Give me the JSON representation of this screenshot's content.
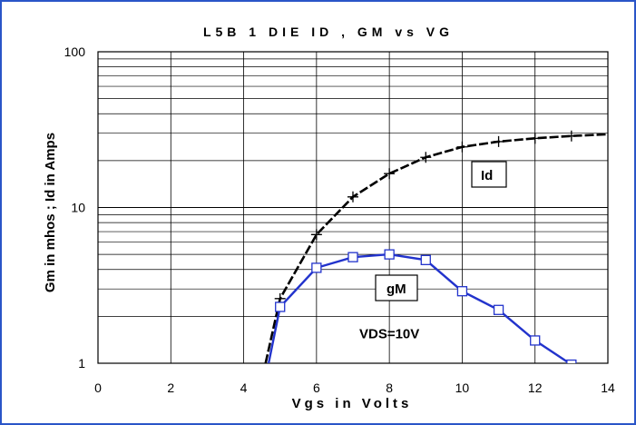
{
  "chart_data": {
    "type": "line",
    "title": "L5B 1 DIE   ID , GM vs VG",
    "xlabel": "Vgs in Volts",
    "ylabel": "Gm in  mhos ; Id in Amps",
    "xlim": [
      0,
      14
    ],
    "ylim": [
      1,
      100
    ],
    "y_scale": "log",
    "x_ticks": [
      "0",
      "2",
      "4",
      "6",
      "8",
      "10",
      "12",
      "14"
    ],
    "y_ticks": [
      "1",
      "10",
      "100"
    ],
    "grid": true,
    "series": [
      {
        "name": "Id",
        "color": "#000000",
        "marker": "plus",
        "line_style": "dashed",
        "x": [
          4.6,
          5.0,
          6.0,
          7.0,
          8.0,
          9.0,
          10.0,
          11.0,
          12.0,
          13.0,
          14.0
        ],
        "y": [
          1.0,
          2.6,
          6.7,
          11.7,
          16.5,
          21.0,
          24.5,
          26.5,
          27.8,
          28.8,
          29.5
        ]
      },
      {
        "name": "gM",
        "color": "#2233cc",
        "marker": "square",
        "line_style": "solid",
        "x": [
          4.6,
          5.0,
          6.0,
          7.0,
          8.0,
          9.0,
          10.0,
          11.0,
          12.0,
          13.0,
          13.6
        ],
        "y": [
          0.8,
          2.3,
          4.1,
          4.8,
          5.0,
          4.6,
          2.9,
          2.2,
          1.4,
          0.98,
          0.8
        ]
      }
    ],
    "annotations": [
      {
        "text": "VDS=10V",
        "x": 8.0,
        "y": 1.45
      }
    ]
  }
}
